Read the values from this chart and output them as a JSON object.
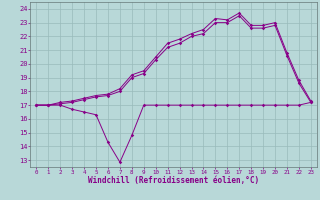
{
  "xlabel": "Windchill (Refroidissement éolien,°C)",
  "xlim": [
    -0.5,
    23.5
  ],
  "ylim": [
    12.5,
    24.5
  ],
  "xticks": [
    0,
    1,
    2,
    3,
    4,
    5,
    6,
    7,
    8,
    9,
    10,
    11,
    12,
    13,
    14,
    15,
    16,
    17,
    18,
    19,
    20,
    21,
    22,
    23
  ],
  "yticks": [
    13,
    14,
    15,
    16,
    17,
    18,
    19,
    20,
    21,
    22,
    23,
    24
  ],
  "bg_color": "#b8d8d8",
  "line_color": "#880088",
  "grid_color": "#99bbbb",
  "line1_x": [
    0,
    1,
    2,
    3,
    4,
    5,
    6,
    7,
    8,
    9,
    10,
    11,
    12,
    13,
    14,
    15,
    16,
    17,
    18,
    19,
    20,
    21,
    22,
    23
  ],
  "line1_y": [
    17,
    17,
    17,
    16.7,
    16.5,
    16.3,
    14.3,
    12.85,
    14.8,
    17,
    17,
    17,
    17,
    17,
    17,
    17,
    17,
    17,
    17,
    17,
    17,
    17,
    17,
    17.2
  ],
  "line2_x": [
    0,
    1,
    2,
    3,
    4,
    5,
    6,
    7,
    8,
    9,
    10,
    11,
    12,
    13,
    14,
    15,
    16,
    17,
    18,
    19,
    20,
    21,
    22,
    23
  ],
  "line2_y": [
    17,
    17,
    17.2,
    17.3,
    17.5,
    17.7,
    17.8,
    18.2,
    19.2,
    19.5,
    20.5,
    21.5,
    21.8,
    22.2,
    22.5,
    23.3,
    23.2,
    23.7,
    22.8,
    22.8,
    23.0,
    20.8,
    18.8,
    17.3
  ],
  "line3_x": [
    0,
    1,
    2,
    3,
    4,
    5,
    6,
    7,
    8,
    9,
    10,
    11,
    12,
    13,
    14,
    15,
    16,
    17,
    18,
    19,
    20,
    21,
    22,
    23
  ],
  "line3_y": [
    17,
    17,
    17.1,
    17.2,
    17.4,
    17.6,
    17.7,
    18.0,
    19.0,
    19.3,
    20.3,
    21.2,
    21.5,
    22.0,
    22.2,
    23.0,
    23.0,
    23.5,
    22.6,
    22.6,
    22.8,
    20.6,
    18.6,
    17.2
  ],
  "spine_color": "#667777",
  "tick_fontsize": 5.0,
  "xlabel_fontsize": 5.5
}
